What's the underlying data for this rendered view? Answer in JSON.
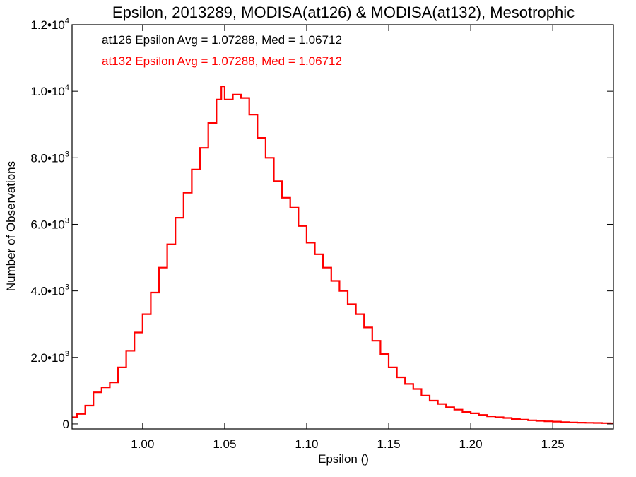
{
  "chart_data": {
    "type": "line",
    "title": "Epsilon, 2013289, MODISA(at126) & MODISA(at132), Mesotrophic",
    "xlabel": "Epsilon ()",
    "ylabel": "Number of Observations",
    "xlim": [
      0.957,
      1.287
    ],
    "ylim": [
      -150,
      12000
    ],
    "x_ticks": [
      1.0,
      1.05,
      1.1,
      1.15,
      1.2,
      1.25
    ],
    "x_tick_labels": [
      "1.00",
      "1.05",
      "1.10",
      "1.15",
      "1.20",
      "1.25"
    ],
    "y_ticks": [
      {
        "value": 0,
        "mant": "0",
        "exp": ""
      },
      {
        "value": 2000,
        "mant": "2.0•10",
        "exp": "3"
      },
      {
        "value": 4000,
        "mant": "4.0•10",
        "exp": "3"
      },
      {
        "value": 6000,
        "mant": "6.0•10",
        "exp": "3"
      },
      {
        "value": 8000,
        "mant": "8.0•10",
        "exp": "3"
      },
      {
        "value": 10000,
        "mant": "1.0•10",
        "exp": "4"
      },
      {
        "value": 12000,
        "mant": "1.2•10",
        "exp": "4"
      }
    ],
    "annotations": [
      {
        "text": "at126 Epsilon Avg = 1.07288, Med = 1.06712",
        "color": "#000000"
      },
      {
        "text": "at132 Epsilon Avg = 1.07288, Med = 1.06712",
        "color": "#ff0000"
      }
    ],
    "series": [
      {
        "color": "#ff0000",
        "x": [
          0.957,
          0.96,
          0.965,
          0.97,
          0.975,
          0.98,
          0.985,
          0.99,
          0.995,
          1.0,
          1.005,
          1.01,
          1.015,
          1.02,
          1.025,
          1.03,
          1.035,
          1.04,
          1.045,
          1.048,
          1.05,
          1.055,
          1.06,
          1.065,
          1.07,
          1.075,
          1.08,
          1.085,
          1.09,
          1.095,
          1.1,
          1.105,
          1.11,
          1.115,
          1.12,
          1.125,
          1.13,
          1.135,
          1.14,
          1.145,
          1.15,
          1.155,
          1.16,
          1.165,
          1.17,
          1.175,
          1.18,
          1.185,
          1.19,
          1.195,
          1.2,
          1.205,
          1.21,
          1.215,
          1.22,
          1.225,
          1.23,
          1.235,
          1.24,
          1.245,
          1.25,
          1.255,
          1.26,
          1.265,
          1.27,
          1.275,
          1.28,
          1.285
        ],
        "values": [
          200,
          300,
          550,
          950,
          1100,
          1250,
          1700,
          2200,
          2750,
          3300,
          3950,
          4700,
          5400,
          6200,
          6950,
          7650,
          8300,
          9050,
          9750,
          10150,
          9750,
          9900,
          9800,
          9300,
          8600,
          8000,
          7300,
          6800,
          6500,
          5950,
          5450,
          5100,
          4700,
          4300,
          4000,
          3600,
          3300,
          2900,
          2500,
          2100,
          1700,
          1400,
          1200,
          1050,
          850,
          700,
          600,
          500,
          430,
          360,
          320,
          270,
          230,
          200,
          180,
          150,
          130,
          110,
          95,
          80,
          70,
          55,
          45,
          40,
          35,
          30,
          25,
          20
        ]
      }
    ]
  }
}
